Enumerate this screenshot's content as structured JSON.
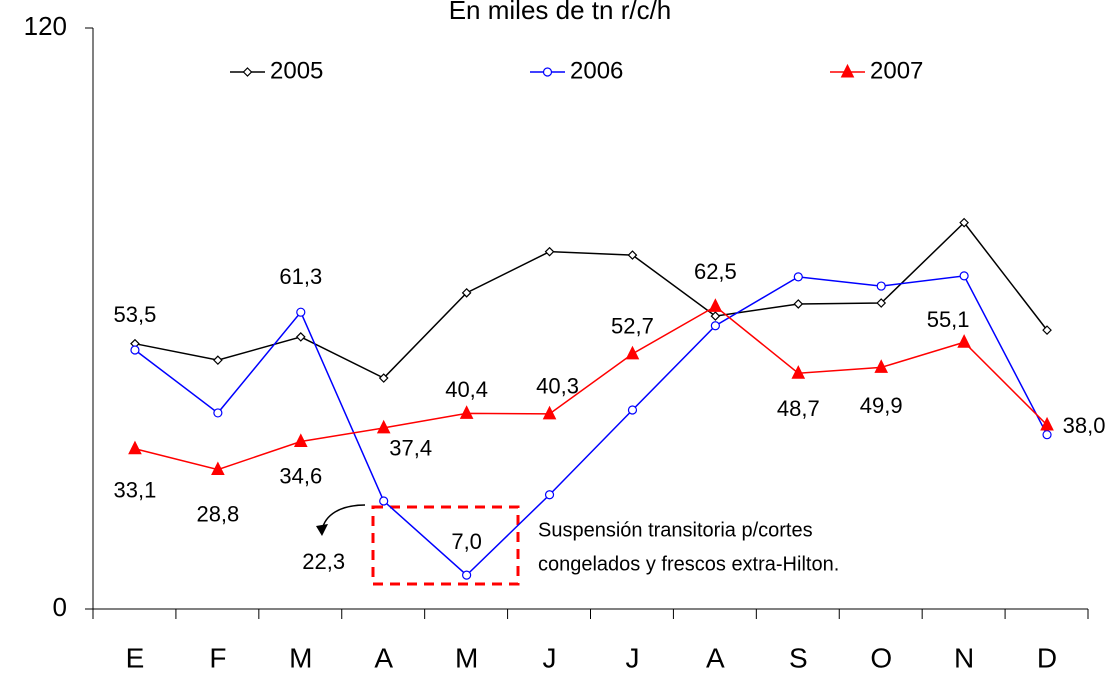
{
  "chart_data": {
    "type": "line",
    "title": "En miles de tn r/c/h",
    "categories": [
      "E",
      "F",
      "M",
      "A",
      "M",
      "J",
      "J",
      "A",
      "S",
      "O",
      "N",
      "D"
    ],
    "ylim": [
      0,
      120
    ],
    "yticks": [
      0,
      120
    ],
    "series": [
      {
        "name": "2005",
        "color": "#000000",
        "marker": "diamond",
        "values": [
          54.8,
          51.4,
          56.2,
          47.7,
          65.3,
          73.8,
          73.1,
          60.5,
          63.0,
          63.2,
          79.8,
          57.6
        ]
      },
      {
        "name": "2006",
        "color": "#0000ff",
        "marker": "circle",
        "values": [
          53.5,
          40.5,
          61.3,
          22.3,
          7.0,
          23.6,
          41.1,
          58.5,
          68.6,
          66.7,
          68.8,
          36.0
        ],
        "value_labels": [
          "53,5",
          null,
          "61,3",
          "22,3",
          "7,0",
          null,
          null,
          null,
          null,
          null,
          null,
          null
        ]
      },
      {
        "name": "2007",
        "color": "#ff0000",
        "marker": "triangle",
        "values": [
          33.1,
          28.8,
          34.6,
          37.4,
          40.4,
          40.3,
          52.7,
          62.5,
          48.7,
          49.9,
          55.1,
          38.0
        ],
        "value_labels": [
          "33,1",
          "28,8",
          "34,6",
          "37,4",
          "40,4",
          "40,3",
          "52,7",
          "62,5",
          "48,7",
          "49,9",
          "55,1",
          "38,0"
        ]
      }
    ],
    "annotation": [
      "Suspensión transitoria p/cortes",
      "congelados y frescos extra-Hilton."
    ]
  }
}
